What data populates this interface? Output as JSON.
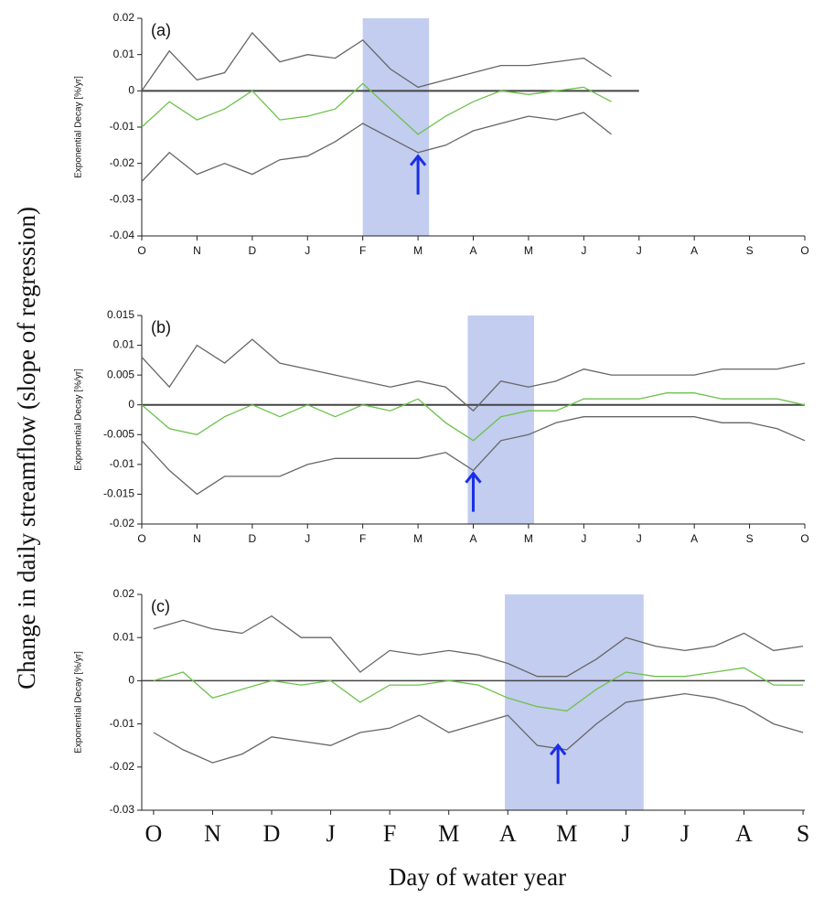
{
  "figure": {
    "ylabel": "Change in daily streamflow (slope of regression)",
    "xlabel": "Day of water year"
  },
  "chart_data": [
    {
      "type": "line",
      "title": "(a)",
      "ylabel": "Exponential Decay [%/yr]",
      "xlim": [
        0,
        12
      ],
      "ylim": [
        -0.04,
        0.02
      ],
      "xticks": [
        {
          "value": 0,
          "label": "O"
        },
        {
          "value": 1,
          "label": "N"
        },
        {
          "value": 2,
          "label": "D"
        },
        {
          "value": 3,
          "label": "J"
        },
        {
          "value": 4,
          "label": "F"
        },
        {
          "value": 5,
          "label": "M"
        },
        {
          "value": 6,
          "label": "A"
        },
        {
          "value": 7,
          "label": "M"
        },
        {
          "value": 8,
          "label": "J"
        },
        {
          "value": 9,
          "label": "J"
        },
        {
          "value": 10,
          "label": "A"
        },
        {
          "value": 11,
          "label": "S"
        },
        {
          "value": 12,
          "label": "O"
        }
      ],
      "yticks": [
        0.02,
        0.01,
        0,
        -0.01,
        -0.02,
        -0.03,
        -0.04
      ],
      "hline": {
        "y": 0,
        "x": [
          0,
          9
        ]
      },
      "highlight": [
        4,
        5.2
      ],
      "highlight_color": "#b8c4ec",
      "arrow": {
        "x": 5,
        "y": -0.018
      },
      "arrow_color": "#1a2ee8",
      "x": [
        0,
        0.5,
        1,
        1.5,
        2,
        2.5,
        3,
        3.5,
        4,
        4.5,
        5,
        5.5,
        6,
        6.5,
        7,
        7.5,
        8,
        8.5
      ],
      "series": [
        {
          "color": "#666666",
          "values": [
            0.0,
            0.011,
            0.003,
            0.005,
            0.016,
            0.008,
            0.01,
            0.009,
            0.014,
            0.006,
            0.001,
            0.003,
            0.005,
            0.007,
            0.007,
            0.008,
            0.009,
            0.004
          ]
        },
        {
          "color": "#6cc24a",
          "values": [
            -0.01,
            -0.003,
            -0.008,
            -0.005,
            0.0,
            -0.008,
            -0.007,
            -0.005,
            0.002,
            -0.005,
            -0.012,
            -0.007,
            -0.003,
            0.0,
            -0.001,
            0.0,
            0.001,
            -0.003
          ]
        },
        {
          "color": "#666666",
          "values": [
            -0.025,
            -0.017,
            -0.023,
            -0.02,
            -0.023,
            -0.019,
            -0.018,
            -0.014,
            -0.009,
            -0.013,
            -0.017,
            -0.015,
            -0.011,
            -0.009,
            -0.007,
            -0.008,
            -0.006,
            -0.012
          ]
        }
      ]
    },
    {
      "type": "line",
      "title": "(b)",
      "ylabel": "Exponential Decay [%/yr]",
      "xlim": [
        0,
        12
      ],
      "ylim": [
        -0.02,
        0.015
      ],
      "xticks": [
        {
          "value": 0,
          "label": "O"
        },
        {
          "value": 1,
          "label": "N"
        },
        {
          "value": 2,
          "label": "D"
        },
        {
          "value": 3,
          "label": "J"
        },
        {
          "value": 4,
          "label": "F"
        },
        {
          "value": 5,
          "label": "M"
        },
        {
          "value": 6,
          "label": "A"
        },
        {
          "value": 7,
          "label": "M"
        },
        {
          "value": 8,
          "label": "J"
        },
        {
          "value": 9,
          "label": "J"
        },
        {
          "value": 10,
          "label": "A"
        },
        {
          "value": 11,
          "label": "S"
        },
        {
          "value": 12,
          "label": "O"
        }
      ],
      "yticks": [
        0.015,
        0.01,
        0.005,
        0,
        -0.005,
        -0.01,
        -0.015,
        -0.02
      ],
      "hline": {
        "y": 0,
        "x": [
          0,
          12
        ]
      },
      "highlight": [
        5.9,
        7.1
      ],
      "highlight_color": "#b8c4ec",
      "arrow": {
        "x": 6.0,
        "y": -0.0115
      },
      "arrow_color": "#1a2ee8",
      "x": [
        0,
        0.5,
        1,
        1.5,
        2,
        2.5,
        3,
        3.5,
        4,
        4.5,
        5,
        5.5,
        6,
        6.5,
        7,
        7.5,
        8,
        8.5,
        9,
        9.5,
        10,
        10.5,
        11,
        11.5,
        12
      ],
      "series": [
        {
          "color": "#666666",
          "values": [
            0.008,
            0.003,
            0.01,
            0.007,
            0.011,
            0.007,
            0.006,
            0.005,
            0.004,
            0.003,
            0.004,
            0.003,
            -0.001,
            0.004,
            0.003,
            0.004,
            0.006,
            0.005,
            0.005,
            0.005,
            0.005,
            0.006,
            0.006,
            0.006,
            0.007
          ]
        },
        {
          "color": "#6cc24a",
          "values": [
            0.0,
            -0.004,
            -0.005,
            -0.002,
            0.0,
            -0.002,
            0.0,
            -0.002,
            0.0,
            -0.001,
            0.001,
            -0.003,
            -0.006,
            -0.002,
            -0.001,
            -0.001,
            0.001,
            0.001,
            0.001,
            0.002,
            0.002,
            0.001,
            0.001,
            0.001,
            0.0
          ]
        },
        {
          "color": "#666666",
          "values": [
            -0.006,
            -0.011,
            -0.015,
            -0.012,
            -0.012,
            -0.012,
            -0.01,
            -0.009,
            -0.009,
            -0.009,
            -0.009,
            -0.008,
            -0.011,
            -0.006,
            -0.005,
            -0.003,
            -0.002,
            -0.002,
            -0.002,
            -0.002,
            -0.002,
            -0.003,
            -0.003,
            -0.004,
            -0.006
          ]
        }
      ]
    },
    {
      "type": "line",
      "title": "(c)",
      "ylabel": "Exponential Decay [%/yr]",
      "xlim": [
        -0.2,
        11.03
      ],
      "ylim": [
        -0.03,
        0.02
      ],
      "xticks": [
        {
          "value": 0,
          "label": "O"
        },
        {
          "value": 1,
          "label": "N"
        },
        {
          "value": 2,
          "label": "D"
        },
        {
          "value": 3,
          "label": "J"
        },
        {
          "value": 4,
          "label": "F"
        },
        {
          "value": 5,
          "label": "M"
        },
        {
          "value": 6,
          "label": "A"
        },
        {
          "value": 7,
          "label": "M"
        },
        {
          "value": 8,
          "label": "J"
        },
        {
          "value": 9,
          "label": "J"
        },
        {
          "value": 10,
          "label": "A"
        },
        {
          "value": 11,
          "label": "S"
        }
      ],
      "yticks": [
        0.02,
        0.01,
        0,
        -0.01,
        -0.02,
        -0.03
      ],
      "hline": {
        "y": 0,
        "x": [
          -0.2,
          11.03
        ]
      },
      "highlight": [
        5.95,
        8.3
      ],
      "highlight_color": "#b8c4ec",
      "arrow": {
        "x": 6.85,
        "y": -0.015
      },
      "arrow_color": "#1a2ee8",
      "x": [
        0,
        0.5,
        1,
        1.5,
        2,
        2.5,
        3,
        3.5,
        4,
        4.5,
        5,
        5.5,
        6,
        6.5,
        7,
        7.5,
        8,
        8.5,
        9,
        9.5,
        10,
        10.5,
        11
      ],
      "series": [
        {
          "color": "#666666",
          "values": [
            0.012,
            0.014,
            0.012,
            0.011,
            0.015,
            0.01,
            0.01,
            0.002,
            0.007,
            0.006,
            0.007,
            0.006,
            0.004,
            0.001,
            0.001,
            0.005,
            0.01,
            0.008,
            0.007,
            0.008,
            0.011,
            0.007,
            0.008
          ]
        },
        {
          "color": "#6cc24a",
          "values": [
            0.0,
            0.002,
            -0.004,
            -0.002,
            0.0,
            -0.001,
            0.0,
            -0.005,
            -0.001,
            -0.001,
            0.0,
            -0.001,
            -0.004,
            -0.006,
            -0.007,
            -0.002,
            0.002,
            0.001,
            0.001,
            0.002,
            0.003,
            -0.001,
            -0.001
          ]
        },
        {
          "color": "#666666",
          "values": [
            -0.012,
            -0.016,
            -0.019,
            -0.017,
            -0.013,
            -0.014,
            -0.015,
            -0.012,
            -0.011,
            -0.008,
            -0.012,
            -0.01,
            -0.008,
            -0.015,
            -0.016,
            -0.01,
            -0.005,
            -0.004,
            -0.003,
            -0.004,
            -0.006,
            -0.01,
            -0.012
          ]
        }
      ]
    }
  ]
}
